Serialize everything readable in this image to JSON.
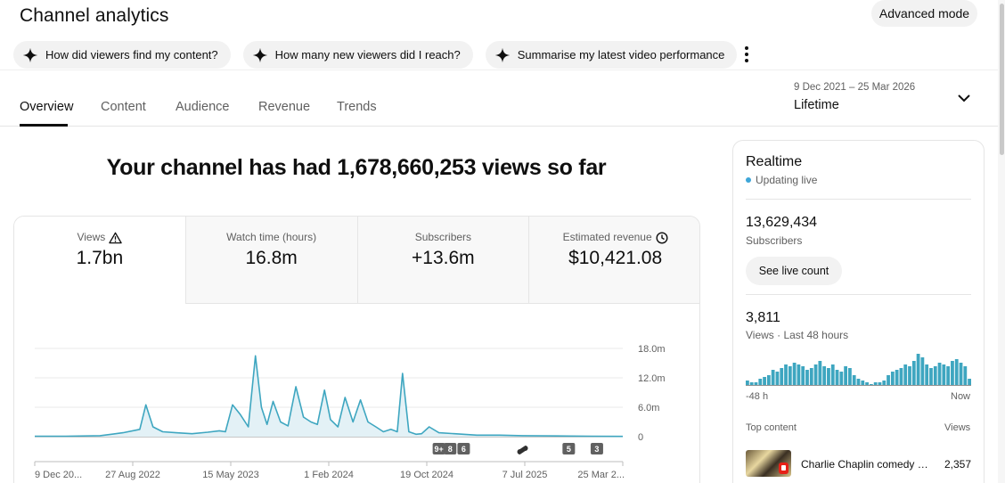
{
  "header": {
    "title": "Channel analytics",
    "advanced_mode_label": "Advanced mode"
  },
  "chips": [
    {
      "label": "How did viewers find my content?"
    },
    {
      "label": "How many new viewers did I reach?"
    },
    {
      "label": "Summarise my latest video performance"
    }
  ],
  "tabs": [
    {
      "label": "Overview",
      "active": true
    },
    {
      "label": "Content"
    },
    {
      "label": "Audience"
    },
    {
      "label": "Revenue"
    },
    {
      "label": "Trends"
    }
  ],
  "date_selector": {
    "range": "9 Dec 2021 – 25 Mar 2026",
    "label": "Lifetime"
  },
  "headline": "Your channel has had 1,678,660,253 views so far",
  "metrics": [
    {
      "label": "Views",
      "value": "1.7bn",
      "icon": "warning-icon"
    },
    {
      "label": "Watch time (hours)",
      "value": "16.8m"
    },
    {
      "label": "Subscribers",
      "value": "+13.6m"
    },
    {
      "label": "Estimated revenue",
      "value": "$10,421.08",
      "icon": "clock-icon"
    }
  ],
  "chart_data": {
    "type": "area",
    "series_color": "#3ea6c0",
    "y_ticks": [
      "18.0m",
      "12.0m",
      "6.0m",
      "0"
    ],
    "y_tick_values": [
      18,
      12,
      6,
      0
    ],
    "ylim": [
      0,
      18
    ],
    "x_ticks": [
      "9 Dec 20...",
      "27 Aug 2022",
      "15 May 2023",
      "1 Feb 2024",
      "19 Oct 2024",
      "7 Jul 2025",
      "25 Mar 2..."
    ],
    "x_range": [
      "2021-12-09",
      "2026-03-25"
    ],
    "x": [
      "2021-12-09",
      "2022-03-01",
      "2022-06-01",
      "2022-08-01",
      "2022-09-15",
      "2022-10-01",
      "2022-10-20",
      "2022-11-15",
      "2022-12-20",
      "2023-02-01",
      "2023-03-15",
      "2023-04-15",
      "2023-05-01",
      "2023-05-20",
      "2023-06-10",
      "2023-07-01",
      "2023-07-20",
      "2023-08-05",
      "2023-08-20",
      "2023-09-05",
      "2023-09-25",
      "2023-10-15",
      "2023-11-05",
      "2023-11-25",
      "2023-12-15",
      "2024-01-01",
      "2024-01-20",
      "2024-02-05",
      "2024-02-25",
      "2024-03-15",
      "2024-04-05",
      "2024-04-25",
      "2024-05-15",
      "2024-06-05",
      "2024-06-25",
      "2024-07-15",
      "2024-08-01",
      "2024-08-15",
      "2024-09-01",
      "2024-09-20",
      "2024-10-05",
      "2024-10-25",
      "2024-11-20",
      "2025-01-01",
      "2025-03-01",
      "2025-05-01",
      "2025-07-01",
      "2025-10-01",
      "2026-01-01",
      "2026-03-25"
    ],
    "values": [
      0.1,
      0.1,
      0.2,
      0.8,
      1.5,
      6.5,
      2.0,
      1.0,
      0.8,
      0.6,
      0.9,
      1.2,
      1.0,
      6.5,
      4.5,
      2.0,
      16.5,
      6.0,
      2.5,
      7.2,
      3.0,
      2.2,
      10.2,
      4.0,
      3.0,
      2.5,
      9.5,
      3.5,
      2.0,
      8.0,
      3.0,
      7.5,
      3.0,
      2.0,
      1.0,
      1.5,
      1.0,
      12.9,
      1.0,
      0.5,
      0.6,
      2.0,
      0.8,
      0.6,
      0.3,
      0.3,
      0.2,
      0.15,
      0.1,
      0.05
    ],
    "annotations": [
      {
        "label": "9+",
        "x": "2024-11-20"
      },
      {
        "label": "8",
        "x": "2024-12-20"
      },
      {
        "label": "6",
        "x": "2025-01-25"
      },
      {
        "label": "",
        "icon": "shorts-icon",
        "x": "2025-07-01"
      },
      {
        "label": "5",
        "x": "2025-11-01"
      },
      {
        "label": "3",
        "x": "2026-01-15"
      }
    ]
  },
  "realtime": {
    "title": "Realtime",
    "status": "Updating live",
    "subscribers_value": "13,629,434",
    "subscribers_label": "Subscribers",
    "live_count_label": "See live count",
    "views_value": "3,811",
    "views_label": "Views · Last 48 hours",
    "bar_color": "#3ea6c0",
    "bars_views": [
      3,
      2,
      2,
      4,
      5,
      6,
      9,
      8,
      10,
      12,
      11,
      13,
      12,
      11,
      9,
      10,
      12,
      14,
      11,
      10,
      12,
      9,
      8,
      11,
      10,
      6,
      4,
      3,
      2,
      1,
      2,
      2,
      3,
      6,
      8,
      9,
      10,
      12,
      11,
      14,
      18,
      16,
      12,
      10,
      11,
      13,
      12,
      11,
      14,
      15,
      13,
      11,
      4
    ],
    "axis_left": "-48 h",
    "axis_right": "Now",
    "top_content_label": "Top content",
    "views_column_label": "Views",
    "top_content": [
      {
        "title": "Charlie Chaplin comedy p...",
        "views": "2,357"
      }
    ]
  }
}
